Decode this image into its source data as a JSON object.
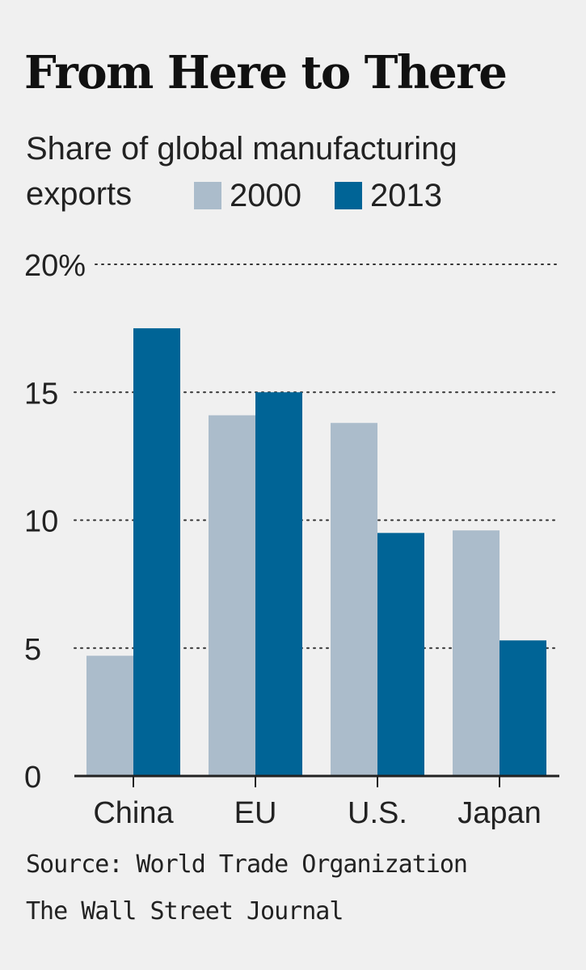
{
  "chart_data": {
    "type": "bar",
    "title": "From Here to There",
    "subtitle_line1": "Share of global manufacturing",
    "subtitle_line2": "exports",
    "categories": [
      "China",
      "EU",
      "U.S.",
      "Japan"
    ],
    "series": [
      {
        "name": "2000",
        "color": "#abbccb",
        "values": [
          4.7,
          14.1,
          13.8,
          9.6
        ]
      },
      {
        "name": "2013",
        "color": "#006496",
        "values": [
          17.5,
          15.0,
          9.5,
          5.3
        ]
      }
    ],
    "ylim": [
      0,
      20
    ],
    "yticks": [
      0,
      5,
      10,
      15,
      20
    ],
    "ytick_labels": [
      "0",
      "5",
      "10",
      "15",
      "20%"
    ],
    "grid": "dotted",
    "legend_position": "top-right",
    "xlabel": "",
    "ylabel": ""
  },
  "footer": {
    "source": "Source: World Trade Organization",
    "credit": "The Wall Street Journal"
  }
}
